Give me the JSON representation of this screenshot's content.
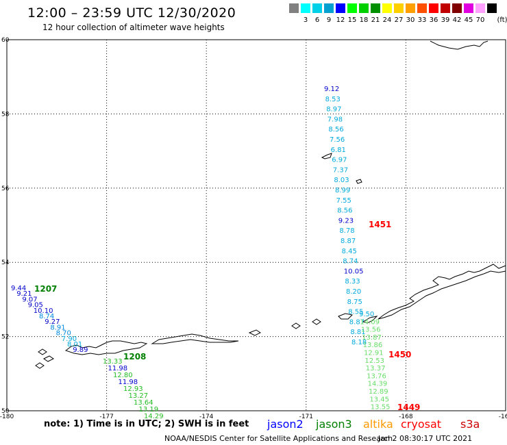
{
  "title": "12:00 – 23:59 UTC 12/30/2020",
  "subtitle": "12 hour collection of altimeter wave heights",
  "legend": {
    "unit": "(ft)",
    "swatches": [
      {
        "color": "#808080",
        "label": ""
      },
      {
        "color": "#00ffff",
        "label": "3"
      },
      {
        "color": "#00d0e8",
        "label": "6"
      },
      {
        "color": "#00a0d0",
        "label": "9"
      },
      {
        "color": "#0000ff",
        "label": "12"
      },
      {
        "color": "#00ff00",
        "label": "15"
      },
      {
        "color": "#00d000",
        "label": "18"
      },
      {
        "color": "#009000",
        "label": "21"
      },
      {
        "color": "#ffff00",
        "label": "24"
      },
      {
        "color": "#ffd000",
        "label": "27"
      },
      {
        "color": "#ffa000",
        "label": "30"
      },
      {
        "color": "#ff5000",
        "label": "33"
      },
      {
        "color": "#ff0000",
        "label": "36"
      },
      {
        "color": "#c00000",
        "label": "39"
      },
      {
        "color": "#800000",
        "label": "42"
      },
      {
        "color": "#e000e0",
        "label": "45"
      },
      {
        "color": "#ffa0ff",
        "label": "70"
      },
      {
        "color": "#000000",
        "label": ""
      }
    ]
  },
  "map": {
    "lon_range": [
      -180,
      -165
    ],
    "lat_range": [
      50,
      60
    ],
    "lon_ticks": [
      "-180",
      "-177",
      "-174",
      "-171",
      "-168",
      "-165"
    ],
    "lat_ticks": [
      "60",
      "58",
      "56",
      "54",
      "52",
      "50"
    ]
  },
  "passes": [
    {
      "label": "1207",
      "color": "#008000",
      "points": [
        [
          "9.44",
          "#0000cc"
        ],
        [
          "9.21",
          "#0000cc"
        ],
        [
          "9.07",
          "#0000cc"
        ],
        [
          "9.05",
          "#0000cc"
        ],
        [
          "10.10",
          "#0000cc"
        ],
        [
          "8.74",
          "#0088dd"
        ],
        [
          "9.27",
          "#0000cc"
        ],
        [
          "8.91",
          "#0088dd"
        ],
        [
          "8.70",
          "#0088dd"
        ],
        [
          "7.90",
          "#00aadd"
        ],
        [
          "8.01",
          "#00aadd"
        ],
        [
          "9.89",
          "#0000cc"
        ]
      ]
    },
    {
      "label": "1208",
      "color": "#008000",
      "points": [
        [
          "13.33",
          "#22bb22"
        ],
        [
          "11.98",
          "#0000cc"
        ],
        [
          "12.80",
          "#22bb22"
        ],
        [
          "11.98",
          "#0000cc"
        ],
        [
          "12.93",
          "#22bb22"
        ],
        [
          "13.27",
          "#22bb22"
        ],
        [
          "13.64",
          "#22bb22"
        ],
        [
          "13.19",
          "#22bb22"
        ],
        [
          "14.29",
          "#22bb22"
        ]
      ]
    },
    {
      "label": "1451",
      "color": "#ff0000",
      "points": [
        [
          "9.12",
          "#0000cc"
        ],
        [
          "8.53",
          "#00aadd"
        ],
        [
          "8.97",
          "#00aadd"
        ],
        [
          "7.98",
          "#00aadd"
        ],
        [
          "8.56",
          "#00aadd"
        ],
        [
          "7.56",
          "#00aadd"
        ],
        [
          "6.81",
          "#00aadd"
        ],
        [
          "6.97",
          "#00aadd"
        ],
        [
          "7.37",
          "#00aadd"
        ],
        [
          "8.03",
          "#00aadd"
        ],
        [
          "8.99",
          "#00aadd"
        ],
        [
          "7.55",
          "#00aadd"
        ],
        [
          "8.56",
          "#00aadd"
        ],
        [
          "9.23",
          "#0000cc"
        ],
        [
          "8.78",
          "#00aadd"
        ],
        [
          "8.87",
          "#00aadd"
        ],
        [
          "8.45",
          "#00aadd"
        ],
        [
          "8.74",
          "#00aadd"
        ],
        [
          "10.05",
          "#0000cc"
        ],
        [
          "8.33",
          "#00aadd"
        ],
        [
          "8.20",
          "#00aadd"
        ],
        [
          "8.75",
          "#00aadd"
        ],
        [
          "8.55",
          "#00aadd"
        ],
        [
          "8.87",
          "#00aadd"
        ],
        [
          "8.81",
          "#00aadd"
        ],
        [
          "8.18",
          "#00aadd"
        ]
      ]
    },
    {
      "label": "1450",
      "color": "#ff0000",
      "points": [
        [
          "9.50",
          "#00aadd"
        ],
        [
          "14.09",
          "#66dd66"
        ],
        [
          "13.56",
          "#66dd66"
        ],
        [
          "13.87",
          "#66dd66"
        ],
        [
          "13.86",
          "#66dd66"
        ],
        [
          "12.91",
          "#66dd66"
        ],
        [
          "12.53",
          "#66dd66"
        ],
        [
          "13.37",
          "#66dd66"
        ],
        [
          "13.76",
          "#66dd66"
        ],
        [
          "14.39",
          "#66dd66"
        ],
        [
          "12.89",
          "#66dd66"
        ],
        [
          "13.45",
          "#66dd66"
        ],
        [
          "13.55",
          "#66dd66"
        ]
      ]
    },
    {
      "label": "1449",
      "color": "#ff0000",
      "points": []
    }
  ],
  "footer": {
    "note": "note: 1) Time is in UTC; 2) SWH is in feet",
    "satellites": [
      {
        "name": "jason2",
        "color": "#0000ff"
      },
      {
        "name": "jason3",
        "color": "#008000"
      },
      {
        "name": "altika",
        "color": "#ff9900"
      },
      {
        "name": "cryosat",
        "color": "#ff0000"
      },
      {
        "name": "s3a",
        "color": "#cc0000"
      }
    ],
    "credit": "NOAA/NESDIS Center for Satellite Applications and Research",
    "timestamp": "Jan  2 08:30:17 UTC 2021"
  }
}
